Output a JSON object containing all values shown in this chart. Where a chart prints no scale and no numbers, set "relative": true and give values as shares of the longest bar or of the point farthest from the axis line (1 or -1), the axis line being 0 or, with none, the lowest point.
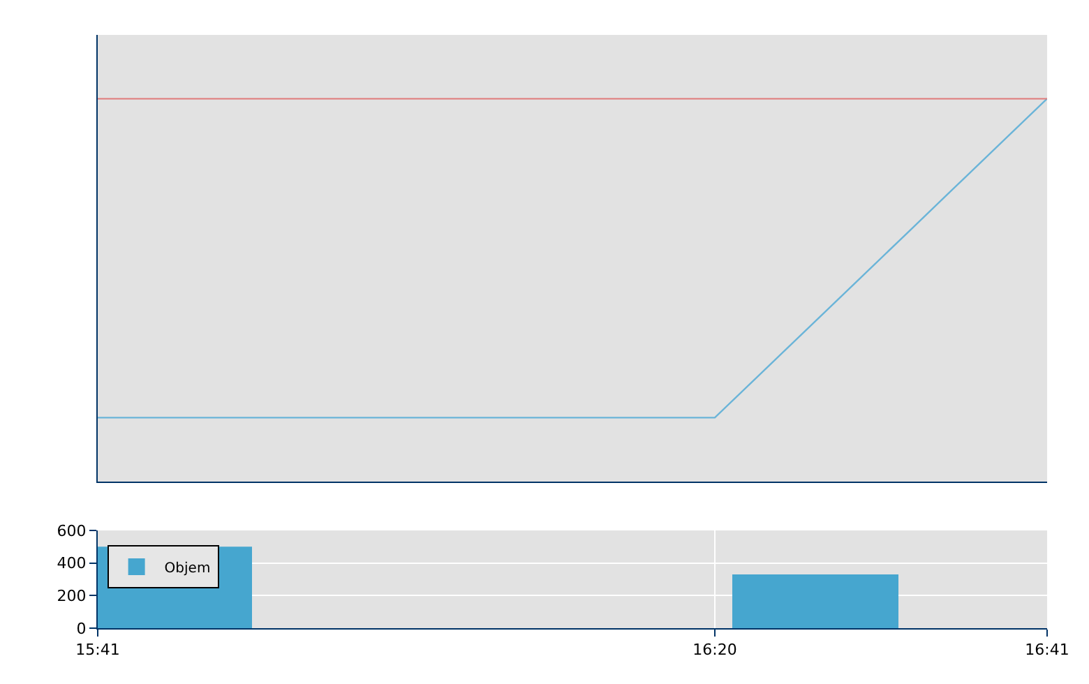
{
  "chart_data": [
    {
      "type": "line",
      "relative": true,
      "categories": [
        null,
        null,
        null,
        null,
        null,
        null,
        null,
        null,
        null,
        null,
        null,
        null,
        null,
        null,
        null,
        null,
        null,
        null,
        null,
        null,
        null
      ],
      "series": [
        {
          "color": "#6ab4d8",
          "values": [
            0.167,
            0.167,
            0.167,
            0.167,
            0.167,
            0.167,
            0.167,
            0.167,
            0.167,
            0.167,
            0.167,
            0.167,
            0.167,
            0.167,
            0.286,
            0.405,
            0.524,
            0.643,
            0.762,
            0.881,
            1
          ]
        }
      ],
      "ref_lines": [
        {
          "axis": "y",
          "value": 1,
          "color": "#e07a7a"
        }
      ]
    },
    {
      "type": "histogram",
      "bins": [
        15.6833,
        15.8458,
        16.3517,
        16.5267
      ],
      "series": [
        {
          "name": "Objem",
          "color": "#46a6cf",
          "values": [
            500,
            0,
            330
          ]
        }
      ],
      "xlim": [
        15.6833,
        16.6833
      ],
      "xticks": [
        {
          "value": 15.6833,
          "label": "15:41"
        },
        {
          "value": 16.3333,
          "label": "16:20"
        },
        {
          "value": 16.6833,
          "label": "16:41"
        }
      ],
      "ylim": [
        0,
        600
      ],
      "yticks": [
        0,
        200,
        400,
        600
      ],
      "grid": true,
      "legend": "top left"
    }
  ]
}
